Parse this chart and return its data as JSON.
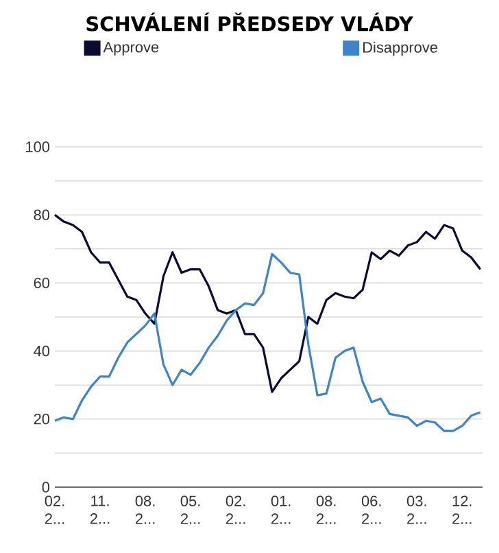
{
  "chart_data": {
    "type": "line",
    "title": "SCHVÁLENÍ PŘEDSEDY VLÁDY",
    "categories": [
      "02. 2...",
      null,
      null,
      null,
      null,
      "11. 2...",
      null,
      null,
      null,
      null,
      "08. 2...",
      null,
      null,
      null,
      null,
      "05. 2...",
      null,
      null,
      null,
      null,
      "02. 2...",
      null,
      null,
      null,
      null,
      "01. 2...",
      null,
      null,
      null,
      null,
      "08. 2...",
      null,
      null,
      null,
      null,
      "06. 2...",
      null,
      null,
      null,
      null,
      "03. 2...",
      null,
      null,
      null,
      null,
      "12. 2...",
      null,
      null
    ],
    "ylim": [
      0,
      100
    ],
    "yticks": [
      0,
      {
        "value": 10,
        "label": null
      },
      20,
      {
        "value": 30,
        "label": null
      },
      40,
      {
        "value": 50,
        "label": null
      },
      60,
      {
        "value": 70,
        "label": null
      },
      80,
      {
        "value": 90,
        "label": null
      },
      100
    ],
    "grid": "y",
    "legend": "top",
    "marker": "none",
    "line_style": "solid",
    "series": [
      {
        "name": "Approve",
        "color": "#0a0a33",
        "values": [
          80,
          78,
          77,
          75,
          69,
          66,
          66,
          61,
          56,
          55,
          51,
          48,
          62,
          69,
          63,
          64,
          64,
          59,
          52,
          51,
          52,
          45,
          45,
          41,
          28,
          32,
          34.5,
          37,
          50,
          48,
          55,
          57,
          56,
          55.5,
          58,
          69,
          67,
          69.5,
          68,
          71,
          72,
          75,
          73,
          77,
          76,
          69.5,
          67.5,
          64
        ]
      },
      {
        "name": "Disapprove",
        "color": "#3d85c8",
        "values": [
          19.5,
          20.5,
          20,
          25.5,
          29.5,
          32.5,
          32.5,
          38,
          42.5,
          45,
          47.5,
          51,
          36,
          30,
          34.5,
          33,
          36.5,
          41,
          44.5,
          49,
          52,
          54,
          53.5,
          57,
          68.5,
          66,
          63,
          62.5,
          42,
          27,
          27.5,
          38,
          40,
          41,
          31,
          25,
          26,
          21.5,
          21,
          20.5,
          18,
          19.5,
          19,
          16.5,
          16.5,
          18,
          21,
          22
        ]
      }
    ]
  }
}
